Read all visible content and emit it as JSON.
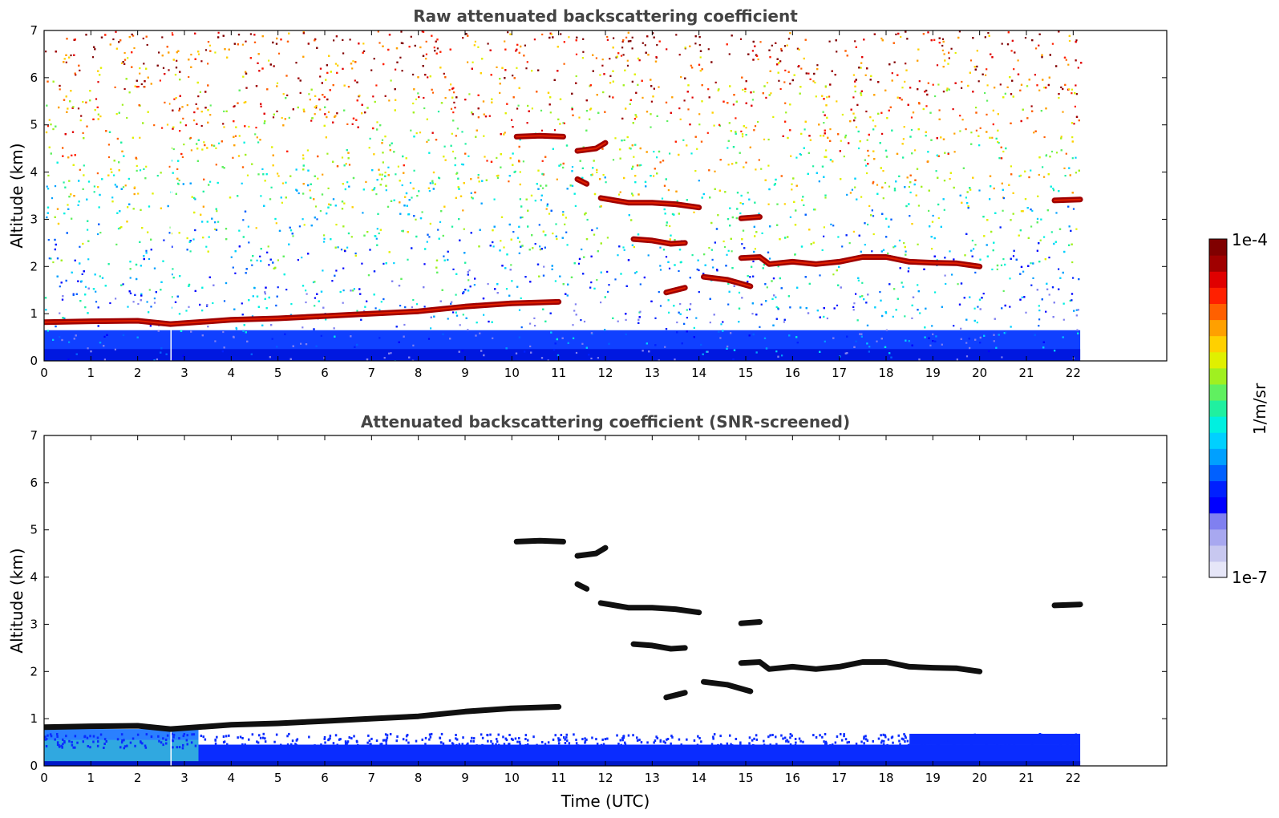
{
  "chart_data": [
    {
      "type": "heatmap",
      "title": "Raw attenuated backscattering coefficient",
      "xlabel": "",
      "ylabel": "Altitude (km)",
      "xlim": [
        0,
        24
      ],
      "ylim": [
        0,
        7
      ],
      "x_ticks": [
        0,
        1,
        2,
        3,
        4,
        5,
        6,
        7,
        8,
        9,
        10,
        11,
        12,
        13,
        14,
        15,
        16,
        17,
        18,
        19,
        20,
        21,
        22
      ],
      "y_ticks": [
        0,
        1,
        2,
        3,
        4,
        5,
        6,
        7
      ],
      "data_extent_x": [
        0,
        22.15
      ],
      "screened": false
    },
    {
      "type": "heatmap",
      "title": "Attenuated backscattering coefficient (SNR-screened)",
      "xlabel": "Time (UTC)",
      "ylabel": "Altitude (km)",
      "xlim": [
        0,
        24
      ],
      "ylim": [
        0,
        7
      ],
      "x_ticks": [
        0,
        1,
        2,
        3,
        4,
        5,
        6,
        7,
        8,
        9,
        10,
        11,
        12,
        13,
        14,
        15,
        16,
        17,
        18,
        19,
        20,
        21,
        22
      ],
      "y_ticks": [
        0,
        1,
        2,
        3,
        4,
        5,
        6,
        7
      ],
      "data_extent_x": [
        0,
        22.15
      ],
      "screened": true
    }
  ],
  "layers": [
    {
      "name": "boundary-layer-top",
      "points": [
        [
          0,
          0.82
        ],
        [
          1,
          0.84
        ],
        [
          2,
          0.85
        ],
        [
          2.7,
          0.78
        ],
        [
          3,
          0.8
        ],
        [
          4,
          0.87
        ],
        [
          5,
          0.9
        ],
        [
          6,
          0.95
        ],
        [
          7,
          1.0
        ],
        [
          8,
          1.05
        ],
        [
          9,
          1.15
        ],
        [
          10,
          1.22
        ],
        [
          11,
          1.25
        ]
      ]
    },
    {
      "name": "cloud-4.7km",
      "points": [
        [
          10.1,
          4.75
        ],
        [
          10.6,
          4.77
        ],
        [
          11.1,
          4.75
        ]
      ]
    },
    {
      "name": "cloud-4.5km",
      "points": [
        [
          11.4,
          4.45
        ],
        [
          11.8,
          4.5
        ],
        [
          12.0,
          4.62
        ]
      ]
    },
    {
      "name": "cloud-3.8km",
      "points": [
        [
          11.4,
          3.85
        ],
        [
          11.6,
          3.75
        ]
      ]
    },
    {
      "name": "cloud-3.4km",
      "points": [
        [
          11.9,
          3.45
        ],
        [
          12.5,
          3.35
        ],
        [
          13.0,
          3.35
        ],
        [
          13.5,
          3.32
        ],
        [
          14.0,
          3.25
        ]
      ]
    },
    {
      "name": "cloud-2.55km",
      "points": [
        [
          12.6,
          2.58
        ],
        [
          13.0,
          2.55
        ],
        [
          13.4,
          2.48
        ],
        [
          13.7,
          2.5
        ]
      ]
    },
    {
      "name": "cloud-3.05km",
      "points": [
        [
          14.9,
          3.02
        ],
        [
          15.3,
          3.05
        ]
      ]
    },
    {
      "name": "cloud-1.7km",
      "points": [
        [
          14.1,
          1.78
        ],
        [
          14.6,
          1.72
        ],
        [
          15.1,
          1.58
        ]
      ]
    },
    {
      "name": "cloud-1.45km",
      "points": [
        [
          13.3,
          1.45
        ],
        [
          13.7,
          1.55
        ]
      ]
    },
    {
      "name": "cloud-2.1km",
      "points": [
        [
          14.9,
          2.18
        ],
        [
          15.3,
          2.2
        ],
        [
          15.5,
          2.05
        ],
        [
          16,
          2.1
        ],
        [
          16.5,
          2.05
        ],
        [
          17,
          2.1
        ],
        [
          17.5,
          2.2
        ],
        [
          18,
          2.2
        ],
        [
          18.5,
          2.1
        ],
        [
          19,
          2.08
        ],
        [
          19.5,
          2.07
        ],
        [
          20,
          2.0
        ]
      ]
    },
    {
      "name": "cloud-3.4km-late",
      "points": [
        [
          21.6,
          3.4
        ],
        [
          22.15,
          3.42
        ]
      ]
    }
  ],
  "colorbar": {
    "min_label": "1e-7",
    "max_label": "1e-4",
    "label": "1/m/sr",
    "colors": [
      "#e6e6f8",
      "#c8c8f0",
      "#a8a8f0",
      "#8080f0",
      "#0000ff",
      "#0020ff",
      "#0060ff",
      "#00a0ff",
      "#00d0ff",
      "#00f0e0",
      "#20f0a0",
      "#60f060",
      "#a0f020",
      "#e0f000",
      "#ffd000",
      "#ffa000",
      "#ff6000",
      "#ff2000",
      "#e00000",
      "#a00000",
      "#800000"
    ]
  }
}
